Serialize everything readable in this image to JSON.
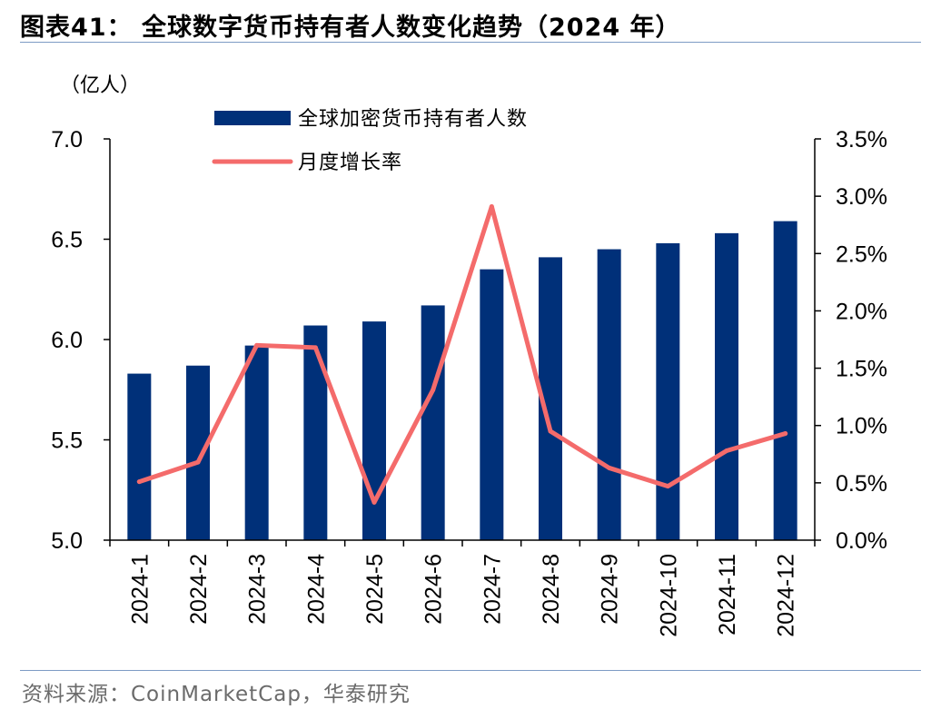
{
  "header": {
    "title": "图表41： 全球数字货币持有者人数变化趋势（2024 年）"
  },
  "footer": {
    "source": "资料来源：CoinMarketCap，华泰研究"
  },
  "chart_data": {
    "type": "bar+line",
    "categories": [
      "2024-1",
      "2024-2",
      "2024-3",
      "2024-4",
      "2024-5",
      "2024-6",
      "2024-7",
      "2024-8",
      "2024-9",
      "2024-10",
      "2024-11",
      "2024-12"
    ],
    "series": [
      {
        "name": "全球加密货币持有者人数",
        "type": "bar",
        "axis": "left",
        "color": "#003079",
        "values": [
          5.83,
          5.87,
          5.97,
          6.07,
          6.09,
          6.17,
          6.35,
          6.41,
          6.45,
          6.48,
          6.53,
          6.59
        ]
      },
      {
        "name": "月度增长率",
        "type": "line",
        "axis": "right",
        "color": "#f46b6b",
        "values": [
          0.51,
          0.68,
          1.7,
          1.68,
          0.33,
          1.31,
          2.91,
          0.95,
          0.63,
          0.47,
          0.78,
          0.93
        ]
      }
    ],
    "y_left": {
      "unit_label": "（亿人）",
      "ylim": [
        5.0,
        7.0
      ],
      "ticks": [
        "5.0",
        "5.5",
        "6.0",
        "6.5",
        "7.0"
      ]
    },
    "y_right": {
      "ylim": [
        0.0,
        3.5
      ],
      "ticks": [
        "0.0%",
        "0.5%",
        "1.0%",
        "1.5%",
        "2.0%",
        "2.5%",
        "3.0%",
        "3.5%"
      ]
    },
    "legend": "top-left",
    "grid": false
  }
}
